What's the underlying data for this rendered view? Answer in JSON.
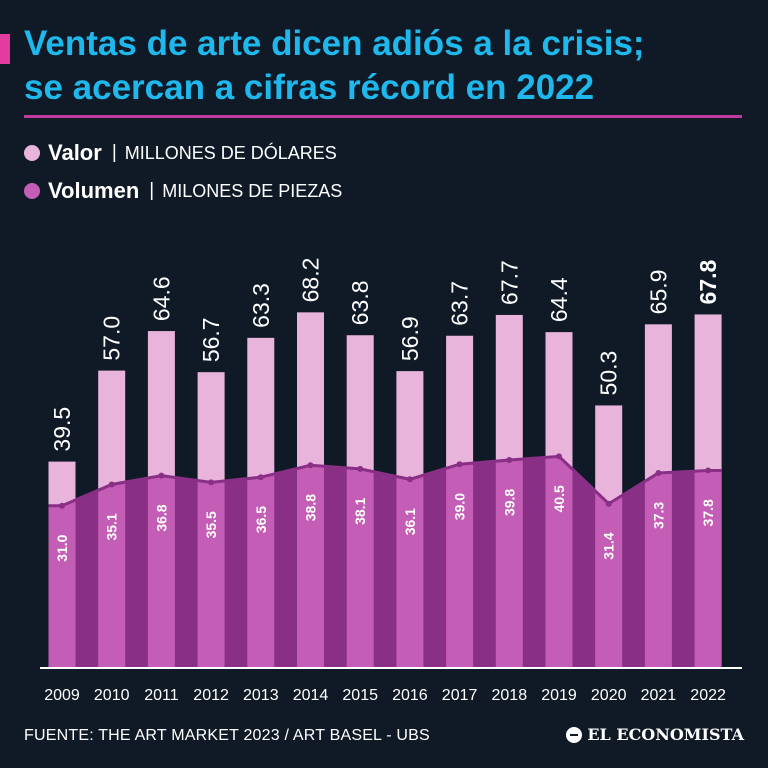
{
  "header": {
    "title_line1": "Ventas de arte dicen adiós a la crisis;",
    "title_line2": "se acercan a cifras récord en 2022"
  },
  "legend": {
    "valor": {
      "name": "Valor",
      "separator": "|",
      "unit": "MILLONES DE DÓLARES"
    },
    "volumen": {
      "name": "Volumen",
      "separator": "|",
      "unit": "MILONES DE PIEZAS"
    }
  },
  "colors": {
    "background": "#101a27",
    "title": "#1fb8ec",
    "valor": "#e8b4dc",
    "volumen_fill": "#c45db6",
    "volumen_line": "#8a2f86",
    "accent": "#e13c9e"
  },
  "chart_data": {
    "type": "bar",
    "title": "Ventas de arte dicen adiós a la crisis; se acercan a cifras récord en 2022",
    "categories": [
      "2009",
      "2010",
      "2011",
      "2012",
      "2013",
      "2014",
      "2015",
      "2016",
      "2017",
      "2018",
      "2019",
      "2020",
      "2021",
      "2022"
    ],
    "series": [
      {
        "name": "Valor",
        "unit": "MILLONES DE DÓLARES",
        "type": "bar",
        "values": [
          39.5,
          57.0,
          64.6,
          56.7,
          63.3,
          68.2,
          63.8,
          56.9,
          63.7,
          67.7,
          64.4,
          50.3,
          65.9,
          67.8
        ],
        "labels": [
          "39.5",
          "57.0",
          "64.6",
          "56.7",
          "63.3",
          "68.2",
          "63.8",
          "56.9",
          "63.7",
          "67.7",
          "64.4",
          "50.3",
          "65.9",
          "67.8"
        ]
      },
      {
        "name": "Volumen",
        "unit": "MILONES DE PIEZAS",
        "type": "area",
        "values": [
          31.0,
          35.1,
          36.8,
          35.5,
          36.5,
          38.8,
          38.1,
          36.1,
          39.0,
          39.8,
          40.5,
          31.4,
          37.3,
          37.8
        ],
        "labels": [
          "31.0",
          "35.1",
          "36.8",
          "35.5",
          "36.5",
          "38.8",
          "38.1",
          "36.1",
          "39.0",
          "39.8",
          "40.5",
          "31.4",
          "37.3",
          "37.8"
        ]
      }
    ],
    "highlight_label": "67.8",
    "xlabel": "",
    "ylabel": "",
    "grid": false
  },
  "footer": {
    "source": "FUENTE: THE ART MARKET 2023 / ART BASEL - UBS",
    "brand": "EL ECONOMISTA"
  }
}
